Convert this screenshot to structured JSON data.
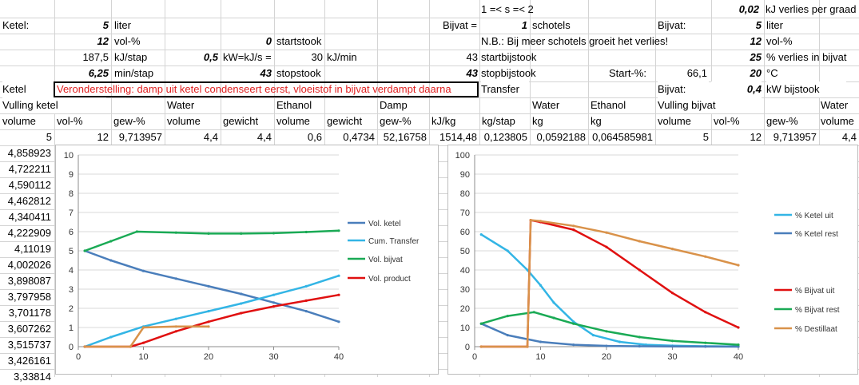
{
  "sheet": {
    "rowA": {
      "s_range": "1 =< s =< 2",
      "loss_per_degree_value": "0,02",
      "loss_per_degree_unit": "kJ verlies per graad"
    },
    "rowB": {
      "ketel_label": "Ketel:",
      "ketel_volume": "5",
      "ketel_unit": "liter",
      "bijvat_eq_label": "Bijvat =",
      "schotels_value": "1",
      "schotels_label": "schotels",
      "bijvat_label": "Bijvat:",
      "bijvat_volume": "5",
      "bijvat_unit": "liter"
    },
    "rowC": {
      "vol_pct": "12",
      "vol_pct_unit": "vol-%",
      "startstook_value": "0",
      "startstook_label": "startstook",
      "nb_text": "N.B.: Bij meer schotels groeit het verlies!",
      "bijvat_vol_pct": "12",
      "bijvat_vol_pct_unit": "vol-%"
    },
    "rowD": {
      "kj_stap": "187,5",
      "kj_stap_unit": "kJ/stap",
      "kw_value": "0,5",
      "kw_label": "kW=kJ/s =",
      "kj_min": "30",
      "kj_min_unit": "kJ/min",
      "startbijstook_value": "43",
      "startbijstook_label": "startbijstook",
      "verlies_pct": "25",
      "verlies_label": "% verlies in bijvat"
    },
    "rowE": {
      "min_stap": "6,25",
      "min_stap_unit": "min/stap",
      "stopstook_value": "43",
      "stopstook_label": "stopstook",
      "stopbijstook_value": "43",
      "stopbijstook_label": "stopbijstook",
      "start_pct_label": "Start-%:",
      "start_pct_value": "66,1",
      "temp_value": "20",
      "temp_unit": "°C"
    },
    "rowF": {
      "ketel": "Ketel",
      "assumption": "Veronderstelling: damp uit ketel condenseert eerst, vloeistof in bijvat verdampt daarna",
      "transfer": "Transfer",
      "bijvat_label": "Bijvat:",
      "bijstook_value": "0,4",
      "bijstook_label": "kW bijstook"
    },
    "rowG": {
      "vulling_ketel": "Vulling ketel",
      "water": "Water",
      "ethanol": "Ethanol",
      "damp": "Damp",
      "water2": "Water",
      "ethanol2": "Ethanol",
      "vulling_bijvat": "Vulling bijvat",
      "water3": "Water"
    },
    "rowH": [
      "volume",
      "vol-%",
      "gew-%",
      "volume",
      "gewicht",
      "volume",
      "gewicht",
      "gew-%",
      "kJ/kg",
      "kg/stap",
      "kg",
      "kg",
      "volume",
      "vol-%",
      "gew-%",
      "volume"
    ],
    "rowI": [
      "5",
      "12",
      "9,713957",
      "4,4",
      "4,4",
      "0,6",
      "0,4734",
      "52,16758",
      "1514,48",
      "0,123805",
      "0,0592188",
      "0,064585981",
      "5",
      "12",
      "9,713957",
      "4,4"
    ],
    "colA": [
      "4,858923",
      "4,722211",
      "4,590112",
      "4,462812",
      "4,340411",
      "4,222909",
      "4,11019",
      "4,002026",
      "3,898087",
      "3,797958",
      "3,701178",
      "3,607262",
      "3,515737",
      "3,426161",
      "3,33814"
    ]
  },
  "chart_data": [
    {
      "type": "line",
      "title": "",
      "xlim": [
        0,
        40
      ],
      "ylim": [
        0,
        10
      ],
      "xticks": [
        0,
        10,
        20,
        30,
        40
      ],
      "yticks": [
        0,
        1,
        2,
        3,
        4,
        5,
        6,
        7,
        8,
        9,
        10
      ],
      "grid": true,
      "legend": "right",
      "series": [
        {
          "name": "Vol. ketel",
          "color": "#4a7ebb",
          "x": [
            1,
            5,
            10,
            15,
            20,
            25,
            30,
            35,
            40
          ],
          "y": [
            5,
            4.5,
            3.95,
            3.55,
            3.15,
            2.75,
            2.3,
            1.85,
            1.3
          ]
        },
        {
          "name": "Cum. Transfer",
          "color": "#33b5e5",
          "x": [
            1,
            5,
            10,
            15,
            20,
            25,
            30,
            35,
            40
          ],
          "y": [
            0,
            0.5,
            1.05,
            1.45,
            1.85,
            2.25,
            2.7,
            3.15,
            3.7
          ]
        },
        {
          "name": "Vol. bijvat",
          "color": "#1aaa55",
          "x": [
            1,
            5,
            9,
            15,
            20,
            25,
            30,
            35,
            40
          ],
          "y": [
            5,
            5.5,
            6.0,
            5.95,
            5.9,
            5.9,
            5.92,
            5.98,
            6.05
          ]
        },
        {
          "name": "Vol. product",
          "color": "#e01010",
          "x": [
            1,
            8,
            10,
            15,
            20,
            25,
            30,
            35,
            40
          ],
          "y": [
            0,
            0,
            0.2,
            0.8,
            1.3,
            1.75,
            2.1,
            2.4,
            2.7
          ]
        },
        {
          "name": "",
          "color": "#d9924a",
          "x": [
            1,
            8,
            10,
            15,
            20
          ],
          "y": [
            0,
            0,
            1.0,
            1.05,
            1.05
          ]
        }
      ]
    },
    {
      "type": "line",
      "title": "",
      "xlim": [
        0,
        40
      ],
      "ylim": [
        0,
        100
      ],
      "xticks": [
        0,
        10,
        20,
        30,
        40
      ],
      "yticks": [
        0,
        10,
        20,
        30,
        40,
        50,
        60,
        70,
        80,
        90,
        100
      ],
      "grid": true,
      "legend": "right",
      "series": [
        {
          "name": "% Ketel uit",
          "color": "#33b5e5",
          "x": [
            1,
            5,
            8,
            10,
            12,
            15,
            18,
            22,
            26,
            30,
            35,
            40
          ],
          "y": [
            58.5,
            50,
            40,
            32,
            23,
            13,
            6,
            2.5,
            1,
            0.5,
            0.2,
            0.1
          ]
        },
        {
          "name": "% Ketel rest",
          "color": "#4a7ebb",
          "x": [
            1,
            5,
            10,
            15,
            20,
            25,
            30,
            35,
            40
          ],
          "y": [
            12,
            6,
            2.5,
            1,
            0.4,
            0.2,
            0.1,
            0.05,
            0.02
          ]
        },
        {
          "name": "% Bijvat uit",
          "color": "#e01010",
          "x": [
            1,
            8,
            8.5,
            10,
            15,
            20,
            25,
            30,
            35,
            40
          ],
          "y": [
            0,
            0,
            66,
            65,
            61,
            52,
            40,
            28,
            18,
            10
          ]
        },
        {
          "name": "% Bijvat rest",
          "color": "#1aaa55",
          "x": [
            1,
            5,
            9,
            12,
            15,
            20,
            25,
            30,
            35,
            40
          ],
          "y": [
            12,
            16,
            18,
            15,
            12,
            8,
            5,
            3,
            2,
            1
          ]
        },
        {
          "name": "% Destillaat",
          "color": "#d9924a",
          "x": [
            1,
            8,
            8.5,
            10,
            15,
            20,
            25,
            30,
            35,
            40
          ],
          "y": [
            0,
            0,
            66,
            65.5,
            63,
            59.5,
            55,
            51,
            47,
            42.5
          ]
        }
      ]
    }
  ]
}
